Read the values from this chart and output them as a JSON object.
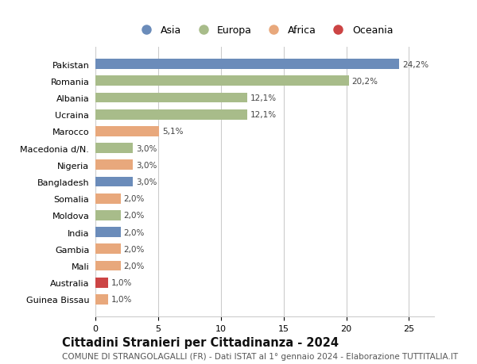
{
  "countries": [
    "Pakistan",
    "Romania",
    "Albania",
    "Ucraina",
    "Marocco",
    "Macedonia d/N.",
    "Nigeria",
    "Bangladesh",
    "Somalia",
    "Moldova",
    "India",
    "Gambia",
    "Mali",
    "Australia",
    "Guinea Bissau"
  ],
  "values": [
    24.2,
    20.2,
    12.1,
    12.1,
    5.1,
    3.0,
    3.0,
    3.0,
    2.0,
    2.0,
    2.0,
    2.0,
    2.0,
    1.0,
    1.0
  ],
  "labels": [
    "24,2%",
    "20,2%",
    "12,1%",
    "12,1%",
    "5,1%",
    "3,0%",
    "3,0%",
    "3,0%",
    "2,0%",
    "2,0%",
    "2,0%",
    "2,0%",
    "2,0%",
    "1,0%",
    "1,0%"
  ],
  "continents": [
    "Asia",
    "Europa",
    "Europa",
    "Europa",
    "Africa",
    "Europa",
    "Africa",
    "Asia",
    "Africa",
    "Europa",
    "Asia",
    "Africa",
    "Africa",
    "Oceania",
    "Africa"
  ],
  "colors": {
    "Asia": "#6b8cba",
    "Europa": "#a8bc8a",
    "Africa": "#e8a87c",
    "Oceania": "#cc4444"
  },
  "legend_order": [
    "Asia",
    "Europa",
    "Africa",
    "Oceania"
  ],
  "title": "Cittadini Stranieri per Cittadinanza - 2024",
  "subtitle": "COMUNE DI STRANGOLAGALLI (FR) - Dati ISTAT al 1° gennaio 2024 - Elaborazione TUTTITALIA.IT",
  "xlim": [
    0,
    27
  ],
  "xticks": [
    0,
    5,
    10,
    15,
    20,
    25
  ],
  "background_color": "#ffffff",
  "grid_color": "#cccccc",
  "bar_height": 0.6,
  "title_fontsize": 10.5,
  "subtitle_fontsize": 7.5,
  "label_fontsize": 7.5,
  "tick_fontsize": 8,
  "legend_fontsize": 9
}
